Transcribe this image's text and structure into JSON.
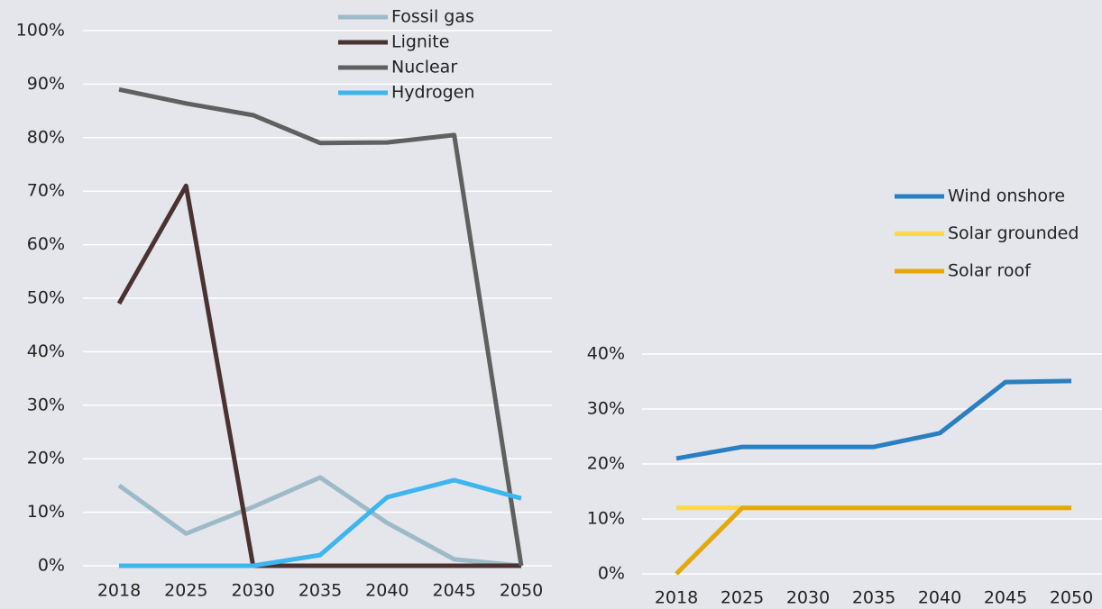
{
  "chart_data": [
    {
      "type": "line",
      "categories": [
        "2018",
        "2025",
        "2030",
        "2035",
        "2040",
        "2045",
        "2050"
      ],
      "series": [
        {
          "name": "Fossil gas",
          "color": "#9dbac8",
          "values": [
            15,
            6,
            11,
            16.5,
            8,
            1.2,
            0
          ]
        },
        {
          "name": "Lignite",
          "color": "#4a3232",
          "values": [
            49,
            71,
            0,
            0,
            0,
            0,
            0
          ]
        },
        {
          "name": "Nuclear",
          "color": "#5f6160",
          "values": [
            89,
            86.4,
            84.2,
            79,
            79.1,
            80.5,
            0
          ]
        },
        {
          "name": "Hydrogen",
          "color": "#3db5ee",
          "values": [
            0,
            0,
            0,
            2,
            12.8,
            16,
            12.6
          ]
        }
      ],
      "ylim": [
        0,
        100
      ],
      "yticks": [
        {
          "value": 0,
          "label": "0%"
        },
        {
          "value": 10,
          "label": "10%"
        },
        {
          "value": 20,
          "label": "20%"
        },
        {
          "value": 30,
          "label": "30%"
        },
        {
          "value": 40,
          "label": "40%"
        },
        {
          "value": 50,
          "label": "50%"
        },
        {
          "value": 60,
          "label": "60%"
        },
        {
          "value": 70,
          "label": "70%"
        },
        {
          "value": 80,
          "label": "80%"
        },
        {
          "value": 90,
          "label": "90%"
        },
        {
          "value": 100,
          "label": "100%"
        }
      ],
      "grid": true
    },
    {
      "type": "line",
      "categories": [
        "2018",
        "2025",
        "2030",
        "2035",
        "2040",
        "2045",
        "2050"
      ],
      "series": [
        {
          "name": "Wind onshore",
          "color": "#2a7fc1",
          "values": [
            21,
            23.1,
            23.1,
            23.1,
            25.6,
            34.9,
            35.1
          ]
        },
        {
          "name": "Solar grounded",
          "color": "#fcd84a",
          "values": [
            12,
            12,
            12,
            12,
            12,
            12,
            12
          ]
        },
        {
          "name": "Solar roof",
          "color": "#e3a80b",
          "values": [
            0,
            12,
            12,
            12,
            12,
            12,
            12
          ]
        }
      ],
      "ylim": [
        0,
        40
      ],
      "yticks": [
        {
          "value": 0,
          "label": "0%"
        },
        {
          "value": 10,
          "label": "10%"
        },
        {
          "value": 20,
          "label": "20%"
        },
        {
          "value": 30,
          "label": "30%"
        },
        {
          "value": 40,
          "label": "40%"
        }
      ],
      "grid": true
    }
  ]
}
